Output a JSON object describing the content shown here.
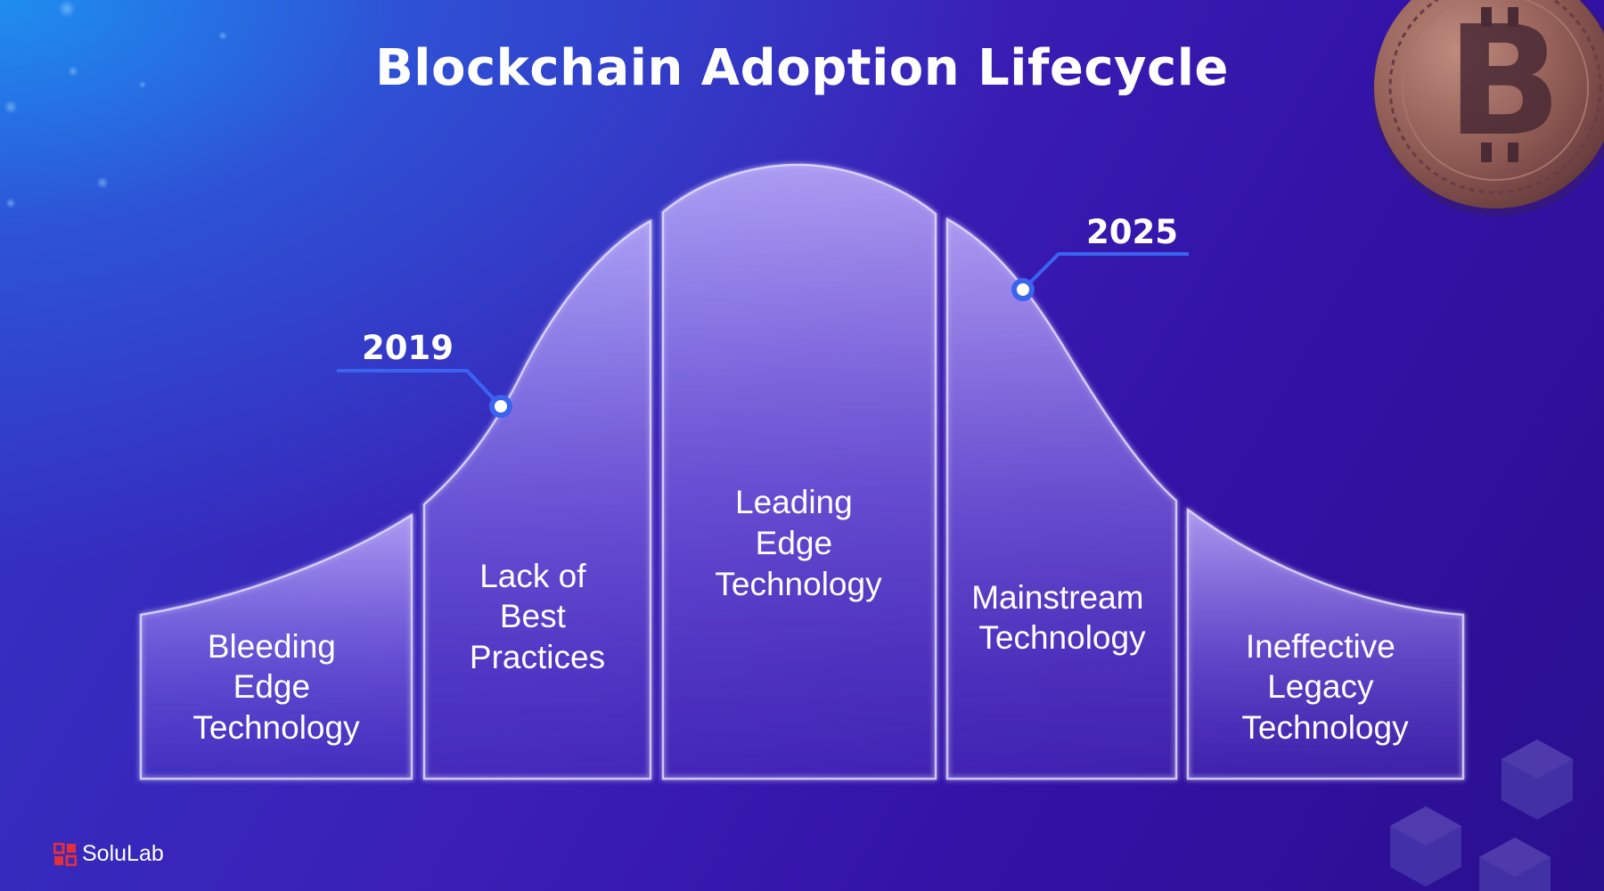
{
  "title": "Blockchain Adoption Lifecycle",
  "stages": [
    {
      "lines": [
        "Bleeding",
        "Edge",
        "Technology"
      ]
    },
    {
      "lines": [
        "Lack of",
        "Best",
        "Practices"
      ]
    },
    {
      "lines": [
        "Leading",
        "Edge",
        "Technology"
      ]
    },
    {
      "lines": [
        "Mainstream",
        "Technology"
      ]
    },
    {
      "lines": [
        "Ineffective",
        "Legacy",
        "Technology"
      ]
    }
  ],
  "milestones": [
    {
      "year": "2019"
    },
    {
      "year": "2025"
    }
  ],
  "brand": {
    "name": "SoluLab",
    "logo_icon": "solulab-logo-icon"
  },
  "decorations": {
    "coin_icon": "bitcoin-coin-icon",
    "cubes_icon": "isometric-cubes-icon"
  },
  "colors": {
    "background_start": "#1e8ef0",
    "background_end": "#2a0f8e",
    "panel_fill": "#b8a6ff",
    "marker_line": "#3a63f0",
    "coin": "#8a5650",
    "logo_red": "#e0303a"
  }
}
